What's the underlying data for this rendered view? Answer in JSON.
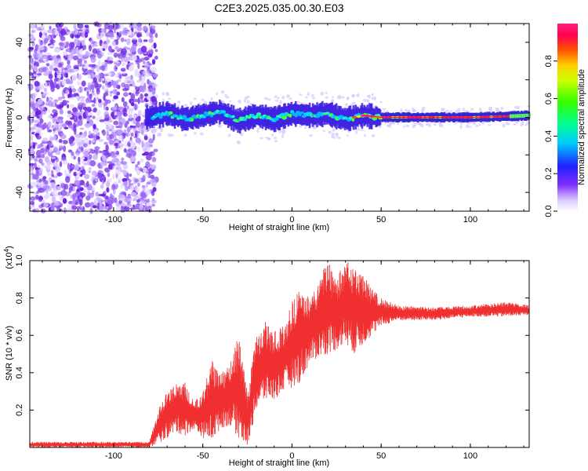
{
  "title": "C2E3.2025.035.00.30.E03",
  "chart_data": [
    {
      "type": "heatmap",
      "xlabel": "Height of straight line (km)",
      "ylabel": "Frequency (Hz)",
      "xlim": [
        -147,
        133
      ],
      "ylim": [
        -50,
        50
      ],
      "x_ticks": [
        -100,
        -50,
        0,
        50,
        100
      ],
      "y_ticks": [
        -40,
        -20,
        0,
        20,
        40
      ],
      "colorbar": {
        "label": "Normalized spectral amplitude",
        "range": [
          0,
          1
        ],
        "ticks": [
          "0.0",
          "0.2",
          "0.4",
          "0.6",
          "0.8"
        ],
        "colormap": "rainbow"
      },
      "ridge_x": [
        -80,
        -70,
        -60,
        -50,
        -40,
        -30,
        -20,
        -10,
        0,
        10,
        20,
        30,
        40,
        50,
        60,
        80,
        100,
        120,
        133
      ],
      "ridge_y": [
        0,
        2,
        -1,
        1,
        3,
        -2,
        1,
        -1,
        2,
        1,
        2,
        -1,
        1,
        0,
        0,
        0,
        0,
        0.5,
        1
      ]
    },
    {
      "type": "line",
      "xlabel": "Height of straight line (km)",
      "ylabel": "SNR (10 * v/v)",
      "y_multiplier": "(x10",
      "y_multiplier_exp": "4",
      "xlim": [
        -147,
        133
      ],
      "ylim": [
        0,
        1.0
      ],
      "x_ticks": [
        -100,
        -50,
        0,
        50,
        100
      ],
      "y_ticks": [
        "0.2",
        "0.4",
        "0.6",
        "0.8",
        "1.0"
      ],
      "series": [
        {
          "color": "#f03030",
          "envelope_x": [
            -147,
            -80,
            -75,
            -70,
            -65,
            -60,
            -55,
            -50,
            -45,
            -40,
            -35,
            -30,
            -25,
            -20,
            -15,
            -10,
            -5,
            0,
            5,
            10,
            15,
            20,
            25,
            30,
            35,
            40,
            45,
            50,
            60,
            80,
            100,
            120,
            133
          ],
          "envelope_min": [
            0.0,
            0.0,
            0.02,
            0.05,
            0.08,
            0.06,
            0.1,
            0.05,
            0.03,
            0.1,
            0.12,
            0.05,
            0.0,
            0.2,
            0.25,
            0.25,
            0.3,
            0.32,
            0.35,
            0.45,
            0.48,
            0.5,
            0.52,
            0.55,
            0.5,
            0.55,
            0.6,
            0.65,
            0.68,
            0.68,
            0.7,
            0.7,
            0.71
          ],
          "envelope_max": [
            0.03,
            0.03,
            0.2,
            0.3,
            0.35,
            0.35,
            0.25,
            0.3,
            0.48,
            0.4,
            0.45,
            0.6,
            0.3,
            0.6,
            0.68,
            0.62,
            0.65,
            0.78,
            0.9,
            0.8,
            0.9,
            1.0,
            0.92,
            1.0,
            0.98,
            0.92,
            0.85,
            0.8,
            0.76,
            0.75,
            0.76,
            0.78,
            0.76
          ]
        }
      ]
    }
  ]
}
